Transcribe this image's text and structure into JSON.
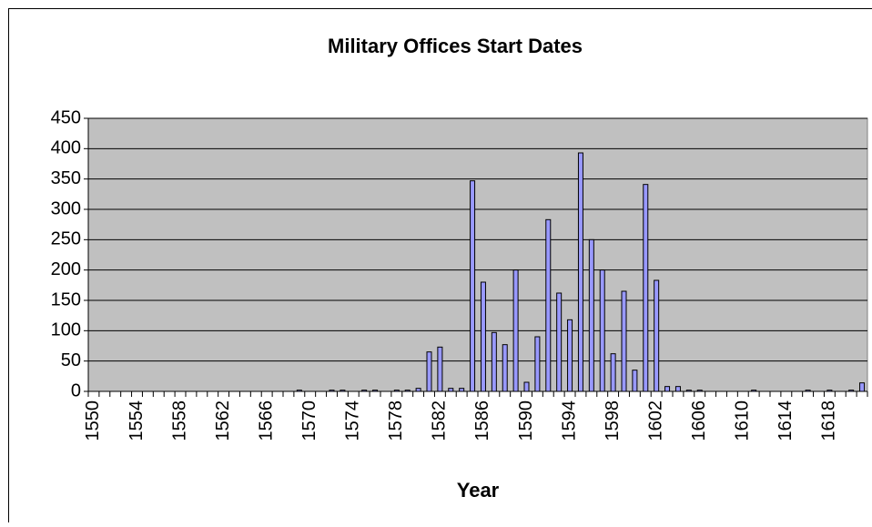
{
  "chart_data": {
    "type": "bar",
    "title": "Military Offices Start Dates",
    "x_label": "Year",
    "categories": [
      "1550",
      null,
      null,
      null,
      "1554",
      null,
      null,
      null,
      "1558",
      null,
      null,
      null,
      "1562",
      null,
      null,
      null,
      "1566",
      null,
      null,
      null,
      "1570",
      null,
      null,
      null,
      "1574",
      null,
      null,
      null,
      "1578",
      null,
      null,
      null,
      "1582",
      null,
      null,
      null,
      "1586",
      null,
      null,
      null,
      "1590",
      null,
      null,
      null,
      "1594",
      null,
      null,
      null,
      "1598",
      null,
      null,
      null,
      "1602",
      null,
      null,
      null,
      "1606",
      null,
      null,
      null,
      "1610",
      null,
      null,
      null,
      "1614",
      null,
      null,
      null,
      "1618",
      null,
      null,
      null
    ],
    "values": [
      0,
      0,
      0,
      0,
      0,
      0,
      0,
      0,
      0,
      0,
      0,
      0,
      0,
      0,
      0,
      0,
      0,
      0,
      0,
      2,
      0,
      0,
      2,
      2,
      0,
      2,
      2,
      0,
      2,
      2,
      5,
      65,
      73,
      5,
      5,
      347,
      180,
      97,
      77,
      200,
      15,
      90,
      283,
      162,
      118,
      393,
      250,
      200,
      62,
      165,
      35,
      341,
      183,
      8,
      8,
      2,
      2,
      0,
      0,
      0,
      0,
      2,
      0,
      0,
      0,
      0,
      2,
      0,
      2,
      0,
      2,
      14
    ],
    "color": "#9999ff",
    "ylim": [
      0,
      450
    ],
    "yticks": [
      0,
      50,
      100,
      150,
      200,
      250,
      300,
      350,
      400,
      450
    ],
    "grid": true
  }
}
